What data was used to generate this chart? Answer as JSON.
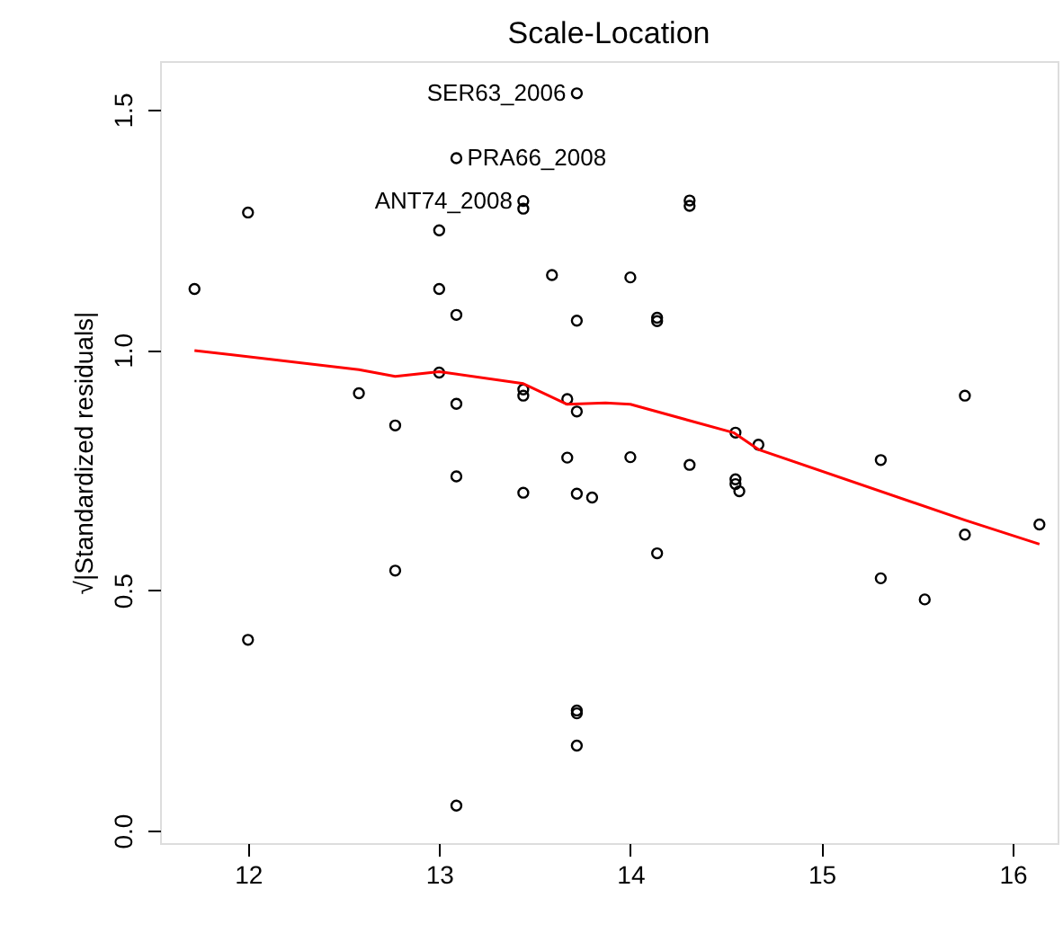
{
  "chart_data": {
    "type": "scatter",
    "title": "Scale-Location",
    "ylabel": "√|Standardized residuals|",
    "xlim": [
      11.54,
      16.235
    ],
    "ylim": [
      -0.026,
      1.601
    ],
    "xticks": [
      12,
      13,
      14,
      15,
      16
    ],
    "yticks": [
      {
        "value": 0,
        "label": "0.0"
      },
      0.5,
      {
        "value": 1,
        "label": "1.0"
      },
      1.5
    ],
    "grid": false,
    "series": [
      {
        "marker": "circle",
        "color": "#000000",
        "x": [
          11.72,
          12.0,
          13.72,
          13.09,
          13.44,
          13.44,
          13.0,
          13.0,
          13.09,
          13.59,
          13.72,
          13.0,
          12.58,
          12.77,
          13.09,
          13.44,
          13.44,
          13.67,
          13.72,
          13.67,
          13.09,
          12.77,
          12.0,
          13.44,
          13.72,
          13.8,
          13.72,
          13.72,
          13.72,
          13.09,
          14.31,
          14.31,
          14.0,
          14.14,
          14.14,
          15.75,
          14.55,
          14.67,
          14.0,
          14.31,
          14.55,
          14.55,
          14.57,
          14.14,
          15.31,
          15.31,
          15.54,
          15.75,
          16.14
        ],
        "values": [
          1.127,
          1.286,
          1.534,
          1.399,
          1.31,
          1.294,
          1.249,
          1.127,
          1.073,
          1.156,
          1.061,
          0.953,
          0.91,
          0.843,
          0.888,
          0.918,
          0.905,
          0.898,
          0.872,
          0.776,
          0.737,
          0.541,
          0.397,
          0.703,
          0.701,
          0.693,
          0.25,
          0.244,
          0.177,
          0.052,
          1.311,
          1.3,
          1.151,
          1.067,
          1.06,
          0.905,
          0.828,
          0.803,
          0.777,
          0.761,
          0.731,
          0.721,
          0.706,
          0.577,
          0.771,
          0.525,
          0.481,
          0.616,
          0.637
        ]
      },
      {
        "type": "line",
        "color": "#ff0000",
        "x": [
          11.72,
          12.58,
          12.77,
          13.0,
          13.44,
          13.67,
          13.87,
          14.0,
          14.54,
          14.67,
          15.75,
          16.14
        ],
        "values": [
          0.999,
          0.959,
          0.945,
          0.955,
          0.93,
          0.887,
          0.89,
          0.887,
          0.828,
          0.793,
          0.646,
          0.596
        ]
      }
    ],
    "annotations": [
      {
        "text": "SER63_2006",
        "x": 13.72,
        "y": 1.534
      },
      {
        "text": "PRA66_2008",
        "x": 13.09,
        "y": 1.399
      },
      {
        "text": "ANT74_2008",
        "x": 13.44,
        "y": 1.31
      }
    ]
  }
}
